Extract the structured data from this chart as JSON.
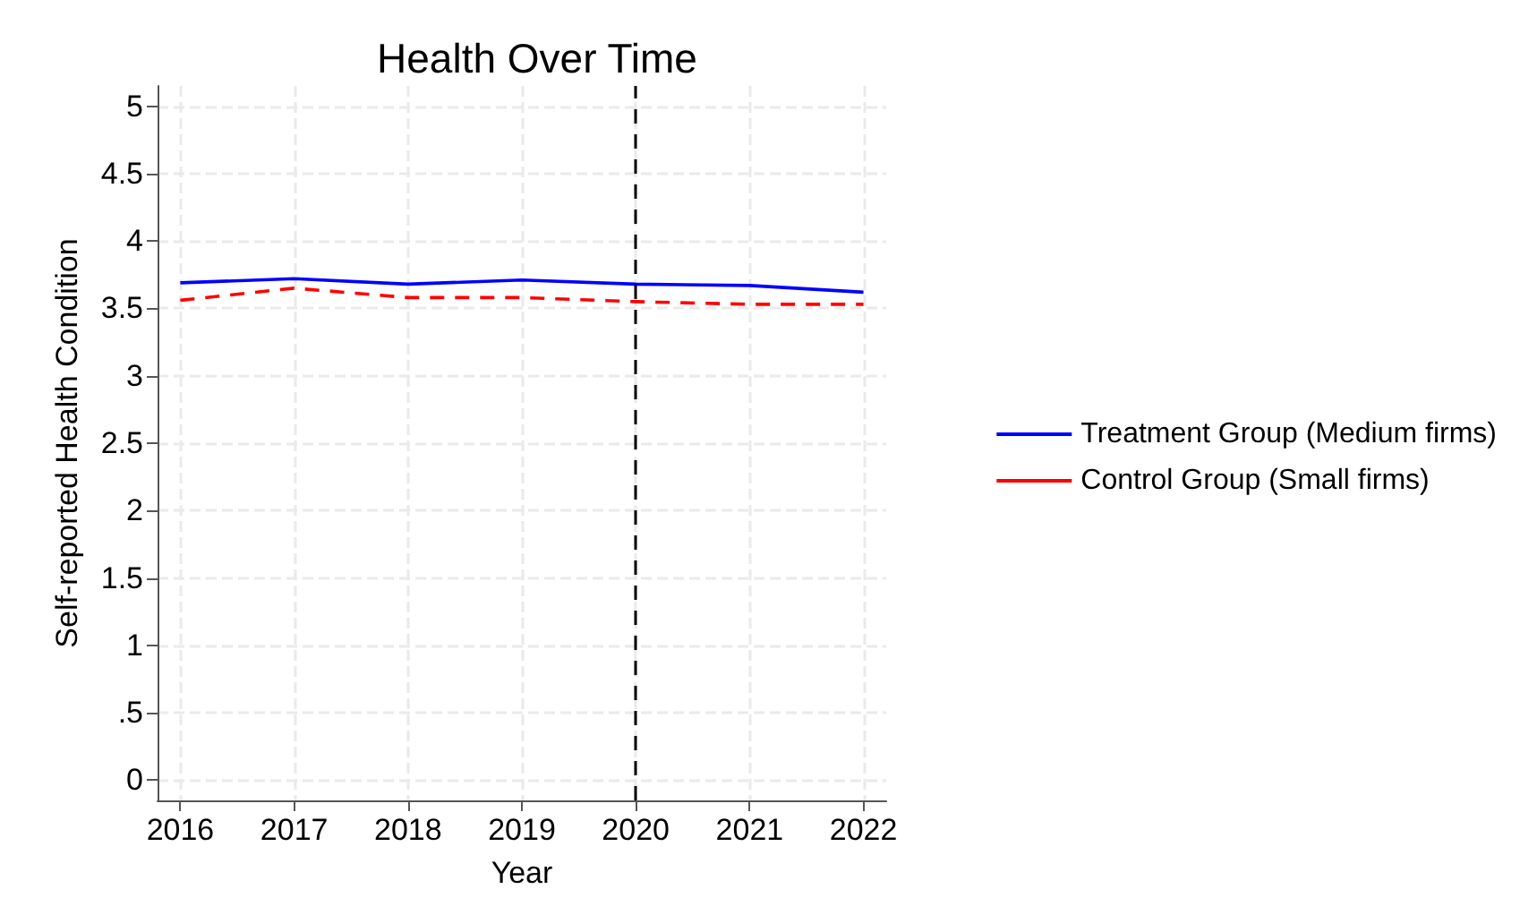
{
  "chart_data": {
    "type": "line",
    "title": "Health Over Time",
    "xlabel": "Year",
    "ylabel": "Self-reported Health Condition",
    "x": [
      2016,
      2017,
      2018,
      2019,
      2020,
      2021,
      2022
    ],
    "series": [
      {
        "name": "Treatment Group (Medium firms)",
        "color": "#0000ff",
        "line_style": "solid",
        "values": [
          3.69,
          3.72,
          3.68,
          3.71,
          3.68,
          3.67,
          3.62
        ]
      },
      {
        "name": "Control Group (Small firms)",
        "color": "#ff0000",
        "line_style": "dashed",
        "values": [
          3.56,
          3.65,
          3.58,
          3.58,
          3.55,
          3.53,
          3.53
        ]
      }
    ],
    "xlim": [
      2015.8,
      2022.2
    ],
    "xticks": [
      2016,
      2017,
      2018,
      2019,
      2020,
      2021,
      2022
    ],
    "ylim": [
      -0.15,
      5.15
    ],
    "yticks": [
      0,
      {
        "value": 0.5,
        "label": ".5"
      },
      1,
      1.5,
      2,
      2.5,
      3,
      3.5,
      4,
      4.5,
      5
    ],
    "ref_lines": [
      {
        "axis": "x",
        "value": 2020,
        "color": "#000000",
        "line_style": "dashed"
      }
    ],
    "grid": true,
    "legend": "right",
    "marker": "none"
  }
}
